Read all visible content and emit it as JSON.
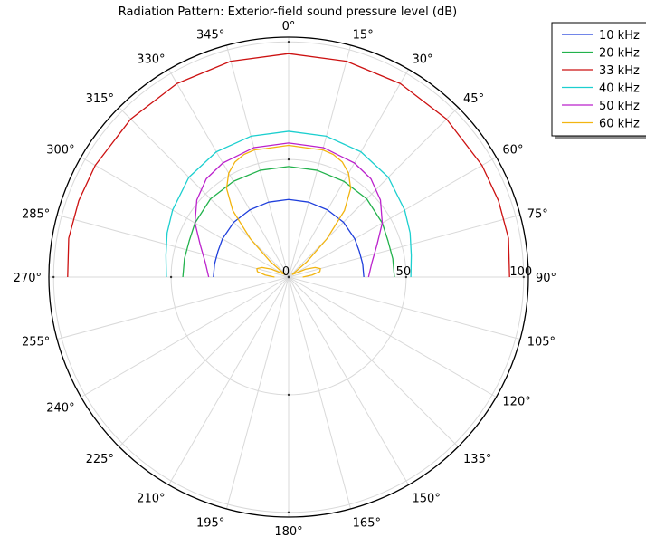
{
  "chart_data": {
    "type": "polar-line",
    "title": "Radiation Pattern: Exterior-field sound pressure level (dB)",
    "angle_unit": "degrees",
    "angle_zero": "top",
    "angle_direction": "clockwise",
    "angle_ticks": [
      0,
      15,
      30,
      45,
      60,
      75,
      90,
      105,
      120,
      135,
      150,
      165,
      180,
      195,
      210,
      225,
      240,
      255,
      270,
      285,
      300,
      315,
      330,
      345
    ],
    "angle_tick_labels": [
      "0°",
      "15°",
      "30°",
      "45°",
      "60°",
      "75°",
      "90°",
      "105°",
      "120°",
      "135°",
      "150°",
      "165°",
      "180°",
      "195°",
      "210°",
      "225°",
      "240°",
      "255°",
      "270°",
      "285°",
      "300°",
      "315°",
      "330°",
      "345°"
    ],
    "radial_ticks": [
      0,
      50,
      100
    ],
    "radial_tick_labels": [
      "0",
      "50",
      "100"
    ],
    "rlim": [
      0,
      102
    ],
    "grid": true,
    "legend_position": "top-right",
    "series": [
      {
        "name": "10 kHz",
        "color": "#1f3fdc",
        "theta": [
          -90,
          -80,
          -70,
          -60,
          -45,
          -30,
          -15,
          0,
          15,
          30,
          45,
          60,
          70,
          80,
          90
        ],
        "r": [
          32,
          32,
          32,
          32.5,
          33,
          33,
          33,
          33,
          33,
          33,
          33,
          32.5,
          32,
          32,
          32
        ]
      },
      {
        "name": "20 kHz",
        "color": "#22b24c",
        "theta": [
          -90,
          -80,
          -70,
          -60,
          -45,
          -30,
          -15,
          0,
          15,
          30,
          45,
          60,
          70,
          80,
          90
        ],
        "r": [
          45,
          45,
          45,
          46,
          47,
          47,
          47,
          47,
          47,
          47,
          47,
          46,
          45,
          45,
          45
        ]
      },
      {
        "name": "33 kHz",
        "color": "#cc1111",
        "theta": [
          -90,
          -80,
          -70,
          -60,
          -45,
          -30,
          -15,
          0,
          15,
          30,
          45,
          60,
          70,
          80,
          90
        ],
        "r": [
          94,
          95,
          95,
          95,
          95,
          95,
          95,
          95,
          95,
          95,
          95,
          95,
          95,
          95,
          94
        ]
      },
      {
        "name": "40 kHz",
        "color": "#1ccfcf",
        "theta": [
          -90,
          -80,
          -70,
          -60,
          -45,
          -30,
          -15,
          0,
          15,
          30,
          45,
          60,
          70,
          80,
          90
        ],
        "r": [
          52,
          53,
          55,
          57,
          60,
          61.5,
          62,
          62,
          62,
          61.5,
          60,
          57,
          55,
          53,
          52
        ]
      },
      {
        "name": "50 kHz",
        "color": "#bb22cc",
        "theta": [
          -90,
          -80,
          -70,
          -60,
          -50,
          -40,
          -30,
          -15,
          0,
          15,
          30,
          40,
          50,
          60,
          70,
          80,
          90
        ],
        "r": [
          34,
          36,
          40,
          46,
          51,
          54.5,
          56,
          57,
          57,
          57,
          56,
          54.5,
          51,
          46,
          40,
          36,
          34
        ]
      },
      {
        "name": "60 kHz",
        "color": "#f2b511",
        "theta": [
          -90,
          -85,
          -80,
          -75,
          -70,
          -65,
          -60,
          -55,
          -50,
          -45,
          -40,
          -35,
          -30,
          -25,
          -20,
          -15,
          -10,
          0,
          10,
          15,
          20,
          25,
          30,
          35,
          40,
          45,
          50,
          55,
          60,
          65,
          70,
          75,
          80,
          85,
          90
        ],
        "r": [
          6,
          10,
          13.5,
          14,
          12,
          8,
          3,
          2,
          10,
          23,
          37,
          46,
          51,
          54,
          55.5,
          56,
          55.5,
          56,
          55.5,
          56,
          55.5,
          54,
          51,
          46,
          37,
          23,
          10,
          2,
          3,
          8,
          12,
          14,
          13.5,
          10,
          6
        ]
      }
    ]
  }
}
